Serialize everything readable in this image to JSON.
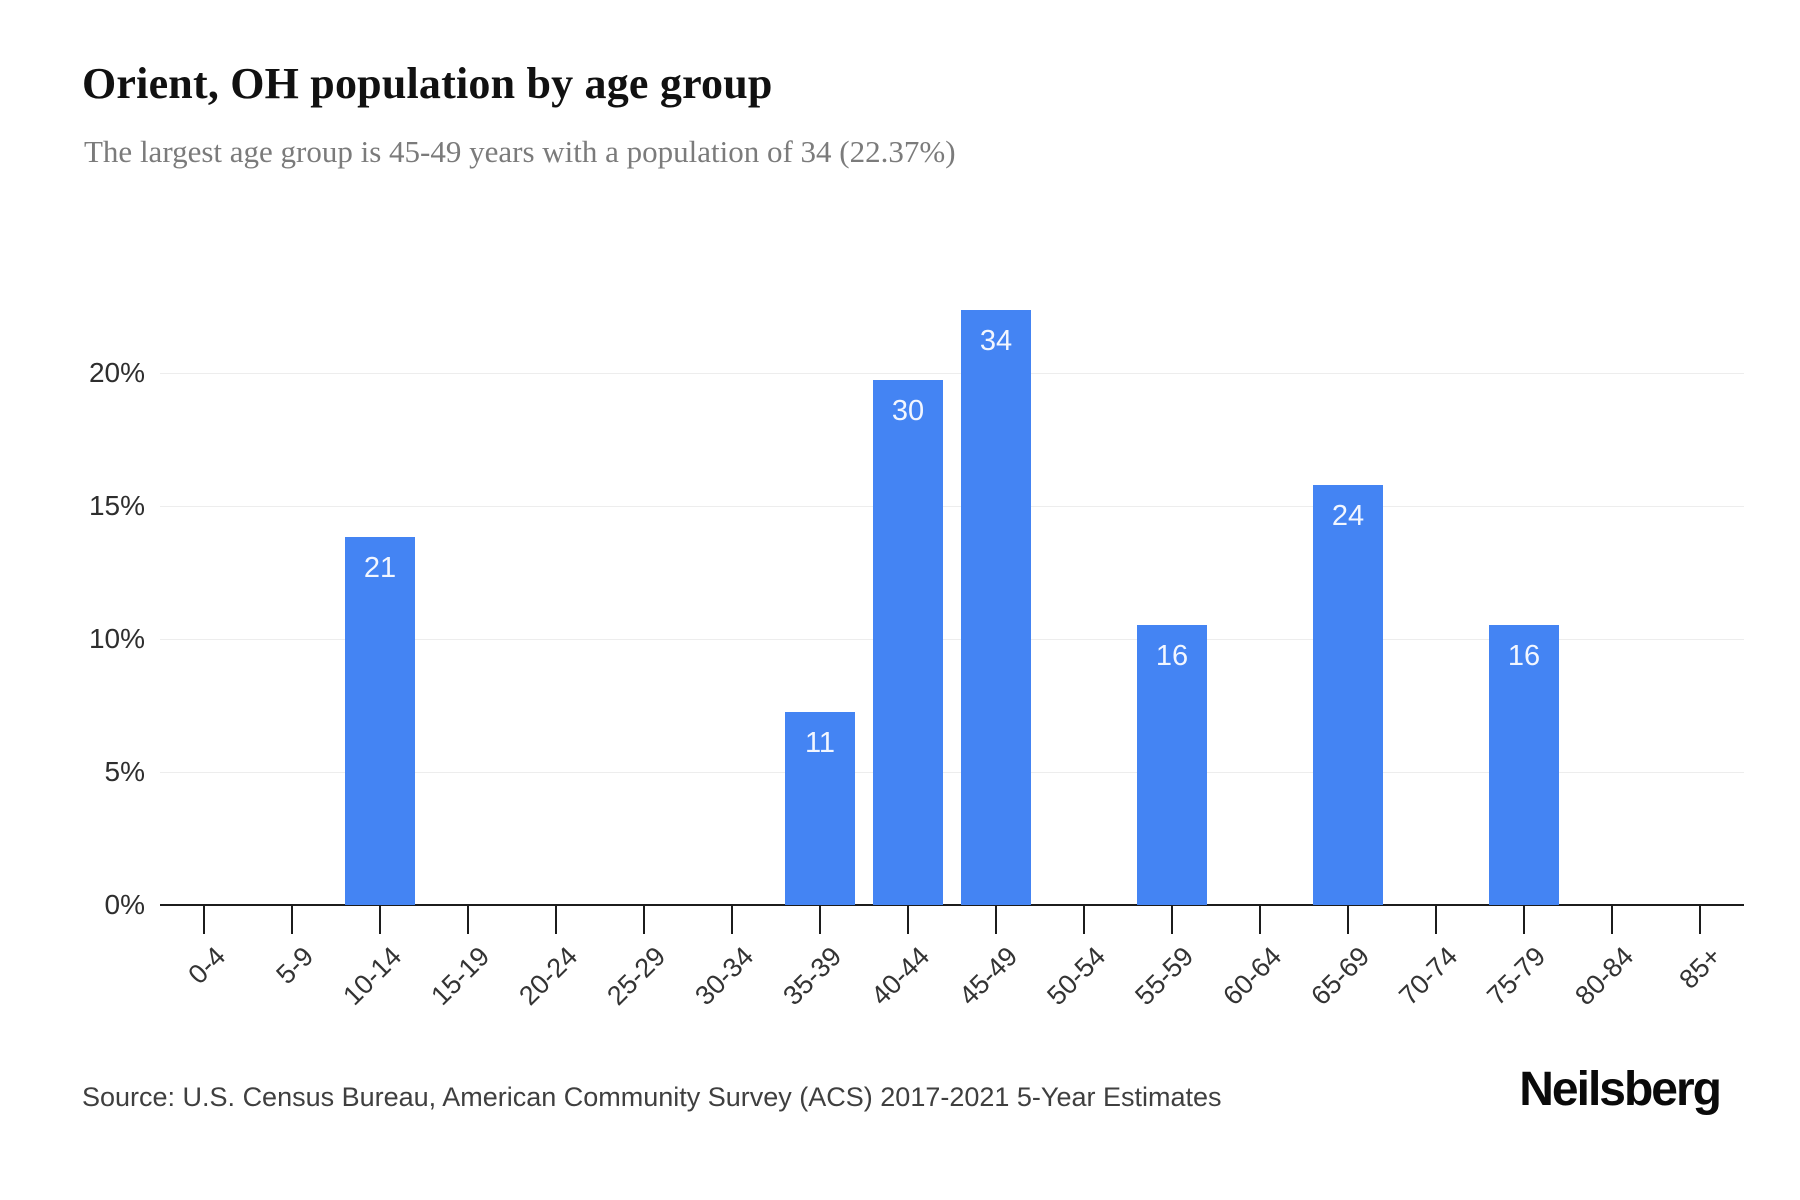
{
  "header": {
    "title": "Orient, OH population by age group",
    "subtitle": "The largest age group is 45-49 years with a population of 34 (22.37%)"
  },
  "chart_data": {
    "type": "bar",
    "title": "Orient, OH population by age group",
    "categories": [
      "0-4",
      "5-9",
      "10-14",
      "15-19",
      "20-24",
      "25-29",
      "30-34",
      "35-39",
      "40-44",
      "45-49",
      "50-54",
      "55-59",
      "60-64",
      "65-69",
      "70-74",
      "75-79",
      "80-84",
      "85+"
    ],
    "values": [
      0,
      0,
      21,
      0,
      0,
      0,
      0,
      11,
      30,
      34,
      0,
      16,
      0,
      24,
      0,
      16,
      0,
      0
    ],
    "percentages": [
      0,
      0,
      13.82,
      0,
      0,
      0,
      0,
      7.24,
      19.74,
      22.37,
      0,
      10.53,
      0,
      15.79,
      0,
      10.53,
      0,
      0
    ],
    "largest_group": {
      "category": "45-49",
      "value": 34,
      "percent": 22.37
    },
    "xlabel": "",
    "ylabel": "",
    "y_axis": {
      "tick_labels": [
        "0%",
        "5%",
        "10%",
        "15%",
        "20%"
      ],
      "tick_values": [
        0,
        5,
        10,
        15,
        20
      ],
      "unit": "%",
      "max": 23.5
    },
    "grid": "horizontal-on",
    "legend": "none",
    "bar_color": "#4484f3",
    "bar_value_label_color": "#ffffff"
  },
  "footer": {
    "source": "Source: U.S. Census Bureau, American Community Survey (ACS) 2017-2021 5-Year Estimates",
    "logo": "Neilsberg"
  }
}
